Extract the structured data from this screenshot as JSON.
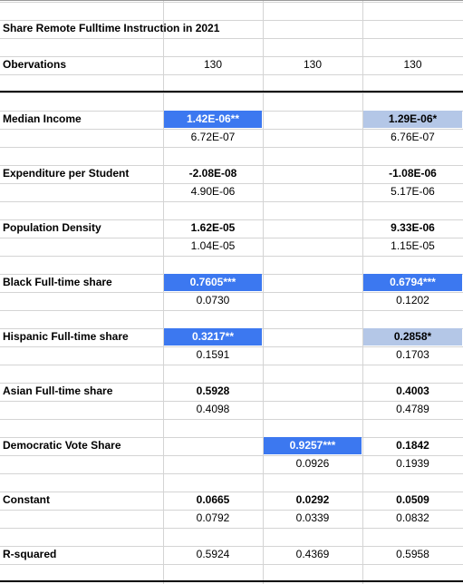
{
  "table": {
    "title": "Share Remote Fulltime Instruction in 2021",
    "observations": {
      "label": "Obervations",
      "cells": [
        "130",
        "130",
        "130"
      ]
    },
    "fill_styles": {
      "strong": {
        "background": "#3c78f0",
        "color": "#ffffff"
      },
      "light": {
        "background": "#b4c7e7",
        "color": "#000000"
      }
    },
    "variables": [
      {
        "label": "Median Income",
        "coef": [
          "1.42E-06**",
          null,
          "1.29E-06*"
        ],
        "se": [
          "6.72E-07",
          null,
          "6.76E-07"
        ],
        "fills": [
          "strong",
          null,
          "light"
        ]
      },
      {
        "label": "Expenditure per Student",
        "coef": [
          "-2.08E-08",
          null,
          "-1.08E-06"
        ],
        "se": [
          "4.90E-06",
          null,
          "5.17E-06"
        ]
      },
      {
        "label": "Population Density",
        "coef": [
          "1.62E-05",
          null,
          "9.33E-06"
        ],
        "se": [
          "1.04E-05",
          null,
          "1.15E-05"
        ]
      },
      {
        "label": "Black Full-time share",
        "coef": [
          "0.7605***",
          null,
          "0.6794***"
        ],
        "se": [
          "0.0730",
          null,
          "0.1202"
        ],
        "fills": [
          "strong",
          null,
          "strong"
        ]
      },
      {
        "label": "Hispanic Full-time share",
        "coef": [
          "0.3217**",
          null,
          "0.2858*"
        ],
        "se": [
          "0.1591",
          null,
          "0.1703"
        ],
        "fills": [
          "strong",
          null,
          "light"
        ]
      },
      {
        "label": "Asian Full-time share",
        "coef": [
          "0.5928",
          null,
          "0.4003"
        ],
        "se": [
          "0.4098",
          null,
          "0.4789"
        ]
      },
      {
        "label": "Democratic Vote Share",
        "coef": [
          null,
          "0.9257***",
          "0.1842"
        ],
        "se": [
          null,
          "0.0926",
          "0.1939"
        ],
        "fills": [
          null,
          "strong",
          null
        ]
      },
      {
        "label": "Constant",
        "coef": [
          "0.0665",
          "0.0292",
          "0.0509"
        ],
        "se": [
          "0.0792",
          "0.0339",
          "0.0832"
        ]
      }
    ],
    "r_squared": {
      "label": "R-squared",
      "cells": [
        "0.5924",
        "0.4369",
        "0.5958"
      ]
    }
  }
}
